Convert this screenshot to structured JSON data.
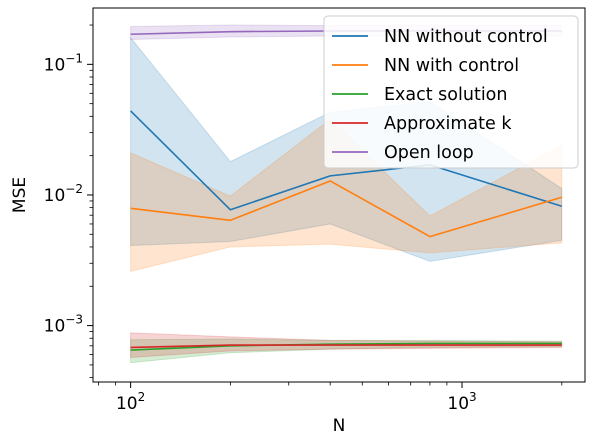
{
  "chart_data": {
    "type": "line",
    "xlabel": "N",
    "ylabel": "MSE",
    "x_scale": "log",
    "y_scale": "log",
    "xlim": [
      77,
      2350
    ],
    "ylim": [
      0.00037,
      0.27
    ],
    "x_major_ticks": [
      {
        "value": 100,
        "base": "10",
        "exp": "2"
      },
      {
        "value": 1000,
        "base": "10",
        "exp": "3"
      }
    ],
    "y_major_ticks": [
      {
        "value": 0.001,
        "base": "10",
        "exp": "−3"
      },
      {
        "value": 0.01,
        "base": "10",
        "exp": "−2"
      },
      {
        "value": 0.1,
        "base": "10",
        "exp": "−1"
      }
    ],
    "grid": false,
    "legend_position": "upper right",
    "x": [
      100,
      200,
      400,
      800,
      2000
    ],
    "series": [
      {
        "name": "NN without control",
        "color": "#1f77b4",
        "values": [
          0.044,
          0.0077,
          0.014,
          0.017,
          0.0082
        ],
        "band_low": [
          0.0041,
          0.0044,
          0.006,
          0.0031,
          0.0045
        ],
        "band_high": [
          0.16,
          0.018,
          0.043,
          0.052,
          0.0112
        ]
      },
      {
        "name": "NN with control",
        "color": "#ff7f0e",
        "values": [
          0.0079,
          0.0064,
          0.0128,
          0.0048,
          0.0096
        ],
        "band_low": [
          0.0026,
          0.004,
          0.0042,
          0.0036,
          0.0043
        ],
        "band_high": [
          0.021,
          0.0098,
          0.038,
          0.0069,
          0.024
        ]
      },
      {
        "name": "Exact solution",
        "color": "#2ca02c",
        "values": [
          0.00065,
          0.0007,
          0.00072,
          0.00073,
          0.00073
        ],
        "band_low": [
          0.00052,
          0.00062,
          0.00066,
          0.00068,
          0.00069
        ],
        "band_high": [
          0.00078,
          0.00079,
          0.00077,
          0.00077,
          0.00076
        ]
      },
      {
        "name": "Approximate k",
        "color": "#d62728",
        "values": [
          0.00068,
          0.00071,
          0.00071,
          0.00071,
          0.00071
        ],
        "band_low": [
          0.00057,
          0.00064,
          0.00066,
          0.00067,
          0.00068
        ],
        "band_high": [
          0.00088,
          0.00082,
          0.00077,
          0.00076,
          0.00075
        ]
      },
      {
        "name": "Open loop",
        "color": "#9467bd",
        "values": [
          0.17,
          0.178,
          0.18,
          0.18,
          0.18
        ],
        "band_low": [
          0.155,
          0.162,
          0.165,
          0.165,
          0.165
        ],
        "band_high": [
          0.195,
          0.2,
          0.198,
          0.198,
          0.198
        ]
      }
    ]
  }
}
